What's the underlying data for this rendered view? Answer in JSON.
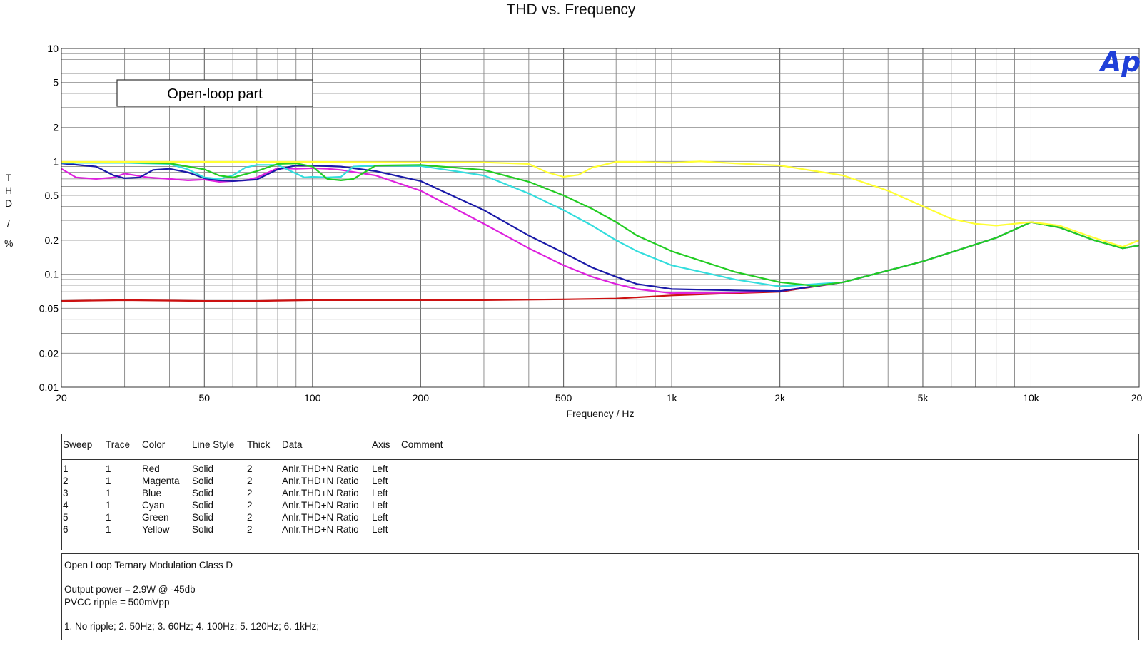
{
  "chart_data": {
    "type": "line",
    "title": "THD vs. Frequency",
    "xlabel": "Frequency / Hz",
    "ylabel_chars": [
      "T",
      "H",
      "D",
      "/",
      "%"
    ],
    "x_scale": "log",
    "y_scale": "log",
    "xlim": [
      20,
      20000
    ],
    "ylim": [
      0.01,
      10
    ],
    "x_ticks": [
      {
        "v": 20,
        "label": "20"
      },
      {
        "v": 50,
        "label": "50"
      },
      {
        "v": 100,
        "label": "100"
      },
      {
        "v": 200,
        "label": "200"
      },
      {
        "v": 500,
        "label": "500"
      },
      {
        "v": 1000,
        "label": "1k"
      },
      {
        "v": 2000,
        "label": "2k"
      },
      {
        "v": 5000,
        "label": "5k"
      },
      {
        "v": 10000,
        "label": "10k"
      },
      {
        "v": 20000,
        "label": "20k"
      }
    ],
    "y_ticks": [
      {
        "v": 0.01,
        "label": "0.01"
      },
      {
        "v": 0.02,
        "label": "0.02"
      },
      {
        "v": 0.05,
        "label": "0.05"
      },
      {
        "v": 0.1,
        "label": "0.1"
      },
      {
        "v": 0.2,
        "label": "0.2"
      },
      {
        "v": 0.5,
        "label": "0.5"
      },
      {
        "v": 1,
        "label": "1"
      },
      {
        "v": 2,
        "label": "2"
      },
      {
        "v": 5,
        "label": "5"
      },
      {
        "v": 10,
        "label": "10"
      }
    ],
    "grid": true,
    "annotation": "Open-loop part",
    "logo": "Ap",
    "series": [
      {
        "color": "#cc1111",
        "points": [
          [
            20,
            0.058
          ],
          [
            30,
            0.059
          ],
          [
            50,
            0.058
          ],
          [
            70,
            0.058
          ],
          [
            100,
            0.059
          ],
          [
            200,
            0.059
          ],
          [
            300,
            0.059
          ],
          [
            500,
            0.06
          ],
          [
            700,
            0.061
          ],
          [
            1000,
            0.065
          ],
          [
            1500,
            0.068
          ],
          [
            2000,
            0.07
          ],
          [
            3000,
            0.085
          ],
          [
            5000,
            0.13
          ],
          [
            8000,
            0.21
          ],
          [
            10000,
            0.29
          ],
          [
            12000,
            0.26
          ],
          [
            15000,
            0.2
          ],
          [
            18000,
            0.17
          ],
          [
            20000,
            0.18
          ]
        ]
      },
      {
        "color": "#dd22dd",
        "points": [
          [
            20,
            0.86
          ],
          [
            22,
            0.72
          ],
          [
            25,
            0.7
          ],
          [
            28,
            0.72
          ],
          [
            30,
            0.78
          ],
          [
            35,
            0.72
          ],
          [
            40,
            0.7
          ],
          [
            45,
            0.68
          ],
          [
            50,
            0.69
          ],
          [
            55,
            0.66
          ],
          [
            60,
            0.67
          ],
          [
            65,
            0.68
          ],
          [
            70,
            0.72
          ],
          [
            80,
            0.87
          ],
          [
            90,
            0.86
          ],
          [
            100,
            0.87
          ],
          [
            110,
            0.86
          ],
          [
            120,
            0.84
          ],
          [
            150,
            0.75
          ],
          [
            200,
            0.55
          ],
          [
            300,
            0.28
          ],
          [
            400,
            0.17
          ],
          [
            500,
            0.12
          ],
          [
            600,
            0.095
          ],
          [
            700,
            0.082
          ],
          [
            800,
            0.074
          ],
          [
            1000,
            0.068
          ],
          [
            1500,
            0.069
          ],
          [
            2000,
            0.071
          ],
          [
            3000,
            0.085
          ],
          [
            5000,
            0.13
          ],
          [
            8000,
            0.21
          ],
          [
            10000,
            0.29
          ],
          [
            12000,
            0.26
          ],
          [
            15000,
            0.2
          ],
          [
            18000,
            0.17
          ],
          [
            20000,
            0.18
          ]
        ]
      },
      {
        "color": "#1a1aa8",
        "points": [
          [
            20,
            0.96
          ],
          [
            25,
            0.9
          ],
          [
            28,
            0.75
          ],
          [
            30,
            0.71
          ],
          [
            33,
            0.72
          ],
          [
            36,
            0.84
          ],
          [
            40,
            0.86
          ],
          [
            45,
            0.8
          ],
          [
            50,
            0.71
          ],
          [
            55,
            0.68
          ],
          [
            60,
            0.67
          ],
          [
            70,
            0.69
          ],
          [
            80,
            0.85
          ],
          [
            90,
            0.92
          ],
          [
            100,
            0.92
          ],
          [
            120,
            0.9
          ],
          [
            150,
            0.82
          ],
          [
            200,
            0.67
          ],
          [
            300,
            0.37
          ],
          [
            400,
            0.22
          ],
          [
            500,
            0.155
          ],
          [
            600,
            0.115
          ],
          [
            700,
            0.095
          ],
          [
            800,
            0.082
          ],
          [
            1000,
            0.074
          ],
          [
            1500,
            0.072
          ],
          [
            2000,
            0.071
          ],
          [
            3000,
            0.085
          ],
          [
            5000,
            0.13
          ],
          [
            8000,
            0.21
          ],
          [
            10000,
            0.29
          ],
          [
            12000,
            0.26
          ],
          [
            15000,
            0.2
          ],
          [
            18000,
            0.17
          ],
          [
            20000,
            0.18
          ]
        ]
      },
      {
        "color": "#33dddd",
        "points": [
          [
            20,
            0.97
          ],
          [
            30,
            0.97
          ],
          [
            40,
            0.95
          ],
          [
            45,
            0.85
          ],
          [
            50,
            0.72
          ],
          [
            55,
            0.7
          ],
          [
            60,
            0.75
          ],
          [
            65,
            0.88
          ],
          [
            70,
            0.93
          ],
          [
            80,
            0.93
          ],
          [
            90,
            0.78
          ],
          [
            95,
            0.72
          ],
          [
            100,
            0.73
          ],
          [
            110,
            0.72
          ],
          [
            120,
            0.73
          ],
          [
            130,
            0.9
          ],
          [
            150,
            0.92
          ],
          [
            200,
            0.91
          ],
          [
            300,
            0.75
          ],
          [
            400,
            0.52
          ],
          [
            500,
            0.37
          ],
          [
            600,
            0.27
          ],
          [
            700,
            0.2
          ],
          [
            800,
            0.16
          ],
          [
            1000,
            0.12
          ],
          [
            1500,
            0.09
          ],
          [
            2000,
            0.078
          ],
          [
            3000,
            0.085
          ],
          [
            5000,
            0.13
          ],
          [
            8000,
            0.21
          ],
          [
            10000,
            0.29
          ],
          [
            12000,
            0.26
          ],
          [
            15000,
            0.2
          ],
          [
            18000,
            0.17
          ],
          [
            20000,
            0.18
          ]
        ]
      },
      {
        "color": "#22cc22",
        "points": [
          [
            20,
            0.98
          ],
          [
            30,
            0.98
          ],
          [
            40,
            0.96
          ],
          [
            50,
            0.85
          ],
          [
            55,
            0.75
          ],
          [
            60,
            0.72
          ],
          [
            70,
            0.82
          ],
          [
            80,
            0.95
          ],
          [
            90,
            0.96
          ],
          [
            100,
            0.9
          ],
          [
            110,
            0.7
          ],
          [
            120,
            0.68
          ],
          [
            130,
            0.7
          ],
          [
            150,
            0.92
          ],
          [
            200,
            0.93
          ],
          [
            300,
            0.84
          ],
          [
            400,
            0.66
          ],
          [
            500,
            0.5
          ],
          [
            600,
            0.38
          ],
          [
            700,
            0.29
          ],
          [
            800,
            0.22
          ],
          [
            1000,
            0.16
          ],
          [
            1500,
            0.105
          ],
          [
            2000,
            0.085
          ],
          [
            2500,
            0.079
          ],
          [
            3000,
            0.085
          ],
          [
            5000,
            0.13
          ],
          [
            8000,
            0.21
          ],
          [
            10000,
            0.29
          ],
          [
            12000,
            0.26
          ],
          [
            15000,
            0.2
          ],
          [
            18000,
            0.17
          ],
          [
            20000,
            0.18
          ]
        ]
      },
      {
        "color": "#ffff33",
        "points": [
          [
            20,
            0.99
          ],
          [
            50,
            0.99
          ],
          [
            100,
            0.99
          ],
          [
            200,
            0.98
          ],
          [
            300,
            0.98
          ],
          [
            400,
            0.95
          ],
          [
            450,
            0.8
          ],
          [
            500,
            0.73
          ],
          [
            550,
            0.76
          ],
          [
            600,
            0.88
          ],
          [
            700,
            0.99
          ],
          [
            800,
            0.99
          ],
          [
            1000,
            0.97
          ],
          [
            1200,
            1.0
          ],
          [
            1500,
            0.96
          ],
          [
            2000,
            0.92
          ],
          [
            3000,
            0.75
          ],
          [
            4000,
            0.55
          ],
          [
            5000,
            0.4
          ],
          [
            6000,
            0.31
          ],
          [
            7000,
            0.28
          ],
          [
            8000,
            0.27
          ],
          [
            10000,
            0.29
          ],
          [
            12000,
            0.27
          ],
          [
            15000,
            0.21
          ],
          [
            18000,
            0.175
          ],
          [
            20000,
            0.2
          ]
        ]
      }
    ]
  },
  "legend": {
    "headers": [
      "Sweep",
      "Trace",
      "Color",
      "Line Style",
      "Thick",
      "Data",
      "Axis",
      "Comment"
    ],
    "rows": [
      [
        "1",
        "1",
        "Red",
        "Solid",
        "2",
        "Anlr.THD+N Ratio",
        "Left",
        ""
      ],
      [
        "2",
        "1",
        "Magenta",
        "Solid",
        "2",
        "Anlr.THD+N Ratio",
        "Left",
        ""
      ],
      [
        "3",
        "1",
        "Blue",
        "Solid",
        "2",
        "Anlr.THD+N Ratio",
        "Left",
        ""
      ],
      [
        "4",
        "1",
        "Cyan",
        "Solid",
        "2",
        "Anlr.THD+N Ratio",
        "Left",
        ""
      ],
      [
        "5",
        "1",
        "Green",
        "Solid",
        "2",
        "Anlr.THD+N Ratio",
        "Left",
        ""
      ],
      [
        "6",
        "1",
        "Yellow",
        "Solid",
        "2",
        "Anlr.THD+N Ratio",
        "Left",
        ""
      ]
    ]
  },
  "notes": {
    "line1": "Open Loop Ternary Modulation Class D",
    "line2": "Output power = 2.9W @ -45db",
    "line3": "PVCC ripple = 500mVpp",
    "line4": "1. No ripple;   2. 50Hz;    3. 60Hz;   4. 100Hz;   5. 120Hz;   6. 1kHz;"
  }
}
